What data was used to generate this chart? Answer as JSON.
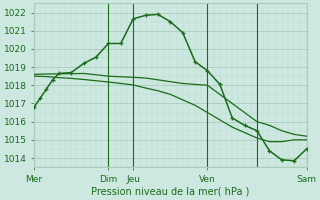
{
  "bg_color": "#cce8e0",
  "plot_bg_color": "#cce8e0",
  "grid_color_major": "#aaccbb",
  "grid_color_minor": "#bbddcc",
  "line_color": "#1a6b1a",
  "text_color": "#1a6b1a",
  "xlabel_text": "Pression niveau de la mer( hPa )",
  "x_tick_labels": [
    "Mer",
    "Dim",
    "Jeu",
    "Ven",
    "Sam"
  ],
  "x_tick_positions": [
    0,
    6,
    8,
    14,
    22
  ],
  "ylim": [
    1013.5,
    1022.5
  ],
  "yticks": [
    1014,
    1015,
    1016,
    1017,
    1018,
    1019,
    1020,
    1021,
    1022
  ],
  "line1_x": [
    0,
    0.5,
    1,
    1.5,
    2,
    3,
    4,
    5,
    6,
    7,
    8,
    9,
    10,
    11,
    12,
    13,
    14,
    15,
    16,
    17,
    18,
    19,
    20,
    21,
    22
  ],
  "line1_y": [
    1016.8,
    1017.3,
    1017.8,
    1018.3,
    1018.65,
    1018.7,
    1019.2,
    1019.55,
    1020.3,
    1020.3,
    1021.65,
    1021.85,
    1021.9,
    1021.5,
    1020.9,
    1019.3,
    1018.8,
    1018.05,
    1016.2,
    1015.8,
    1015.5,
    1014.4,
    1013.9,
    1013.85,
    1014.5
  ],
  "line2_x": [
    0,
    1,
    2,
    3,
    4,
    5,
    6,
    7,
    8,
    9,
    10,
    11,
    12,
    13,
    14,
    15,
    16,
    17,
    18,
    19,
    20,
    21,
    22
  ],
  "line2_y": [
    1018.6,
    1018.62,
    1018.63,
    1018.64,
    1018.65,
    1018.58,
    1018.5,
    1018.47,
    1018.44,
    1018.4,
    1018.3,
    1018.2,
    1018.1,
    1018.05,
    1018.0,
    1017.5,
    1017.0,
    1016.5,
    1016.0,
    1015.8,
    1015.5,
    1015.3,
    1015.2
  ],
  "line3_x": [
    0,
    1,
    2,
    3,
    4,
    5,
    6,
    7,
    8,
    9,
    10,
    11,
    12,
    13,
    14,
    15,
    16,
    17,
    18,
    19,
    20,
    21,
    22
  ],
  "line3_y": [
    1018.5,
    1018.48,
    1018.42,
    1018.38,
    1018.32,
    1018.25,
    1018.18,
    1018.1,
    1018.02,
    1017.85,
    1017.7,
    1017.5,
    1017.2,
    1016.9,
    1016.5,
    1016.1,
    1015.7,
    1015.4,
    1015.1,
    1014.9,
    1014.9,
    1015.0,
    1015.0
  ],
  "vline_positions": [
    0,
    6,
    8,
    14,
    18,
    22
  ],
  "xlim": [
    0,
    22
  ],
  "figsize": [
    3.2,
    2.0
  ],
  "dpi": 100
}
